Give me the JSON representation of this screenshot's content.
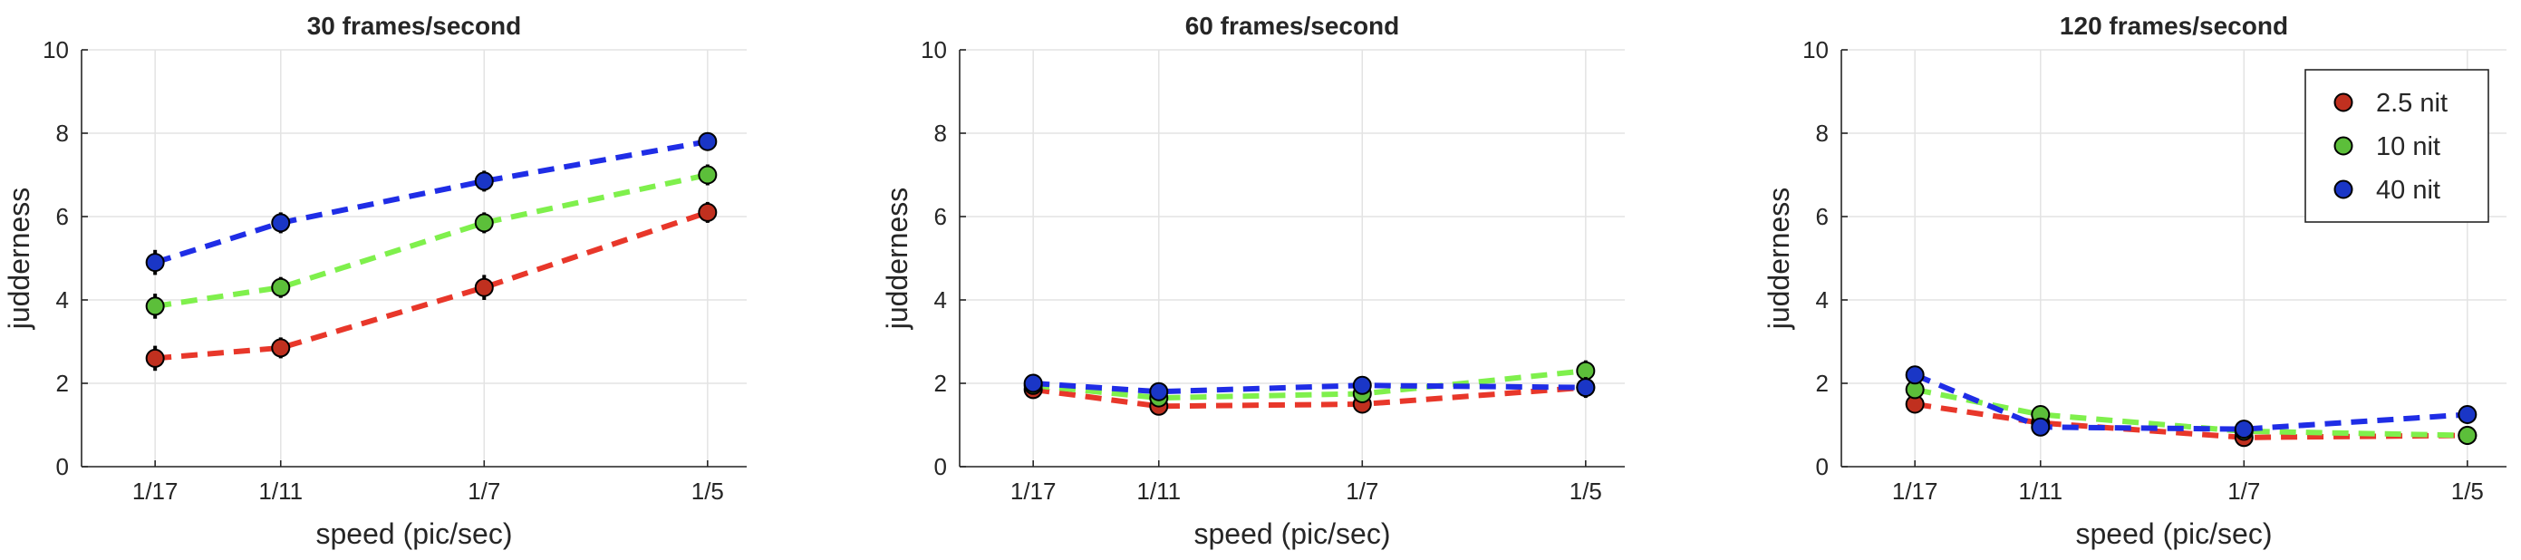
{
  "chart_data": [
    {
      "type": "line",
      "title": "30 frames/second",
      "xlabel": "speed (pic/sec)",
      "ylabel": "judderness",
      "categories": [
        "1/17",
        "1/11",
        "1/7",
        "1/5"
      ],
      "x": [
        0.0588,
        0.0909,
        0.1429,
        0.2
      ],
      "xlim": [
        0.04,
        0.21
      ],
      "ylim": [
        0,
        10
      ],
      "yticks": [
        0,
        2,
        4,
        6,
        8,
        10
      ],
      "grid": true,
      "series": [
        {
          "name": "2.5 nit",
          "color": "#e8372a",
          "marker_color": "#c0301f",
          "values": [
            2.6,
            2.85,
            4.3,
            6.1
          ],
          "err": [
            0.3,
            0.25,
            0.3,
            0.25
          ]
        },
        {
          "name": "10 nit",
          "color": "#7ff04c",
          "marker_color": "#5cbf3a",
          "values": [
            3.85,
            4.3,
            5.85,
            7.0
          ],
          "err": [
            0.3,
            0.25,
            0.25,
            0.25
          ]
        },
        {
          "name": "40 nit",
          "color": "#1f2de6",
          "marker_color": "#1a36c6",
          "values": [
            4.9,
            5.85,
            6.85,
            7.8
          ],
          "err": [
            0.3,
            0.25,
            0.25,
            0.15
          ]
        }
      ]
    },
    {
      "type": "line",
      "title": "60 frames/second",
      "xlabel": "speed (pic/sec)",
      "ylabel": "judderness",
      "categories": [
        "1/17",
        "1/11",
        "1/7",
        "1/5"
      ],
      "x": [
        0.0588,
        0.0909,
        0.1429,
        0.2
      ],
      "xlim": [
        0.04,
        0.21
      ],
      "ylim": [
        0,
        10
      ],
      "yticks": [
        0,
        2,
        4,
        6,
        8,
        10
      ],
      "grid": true,
      "series": [
        {
          "name": "2.5 nit",
          "color": "#e8372a",
          "marker_color": "#c0301f",
          "values": [
            1.85,
            1.45,
            1.5,
            1.9
          ],
          "err": [
            0.2,
            0.2,
            0.2,
            0.2
          ]
        },
        {
          "name": "10 nit",
          "color": "#7ff04c",
          "marker_color": "#5cbf3a",
          "values": [
            1.95,
            1.65,
            1.75,
            2.3
          ],
          "err": [
            0.2,
            0.2,
            0.2,
            0.25
          ]
        },
        {
          "name": "40 nit",
          "color": "#1f2de6",
          "marker_color": "#1a36c6",
          "values": [
            2.0,
            1.8,
            1.95,
            1.9
          ],
          "err": [
            0.2,
            0.2,
            0.2,
            0.25
          ]
        }
      ]
    },
    {
      "type": "line",
      "title": "120 frames/second",
      "xlabel": "speed (pic/sec)",
      "ylabel": "judderness",
      "categories": [
        "1/17",
        "1/11",
        "1/7",
        "1/5"
      ],
      "x": [
        0.0588,
        0.0909,
        0.1429,
        0.2
      ],
      "xlim": [
        0.04,
        0.21
      ],
      "ylim": [
        0,
        10
      ],
      "yticks": [
        0,
        2,
        4,
        6,
        8,
        10
      ],
      "grid": true,
      "legend": "top-right",
      "series": [
        {
          "name": "2.5 nit",
          "color": "#e8372a",
          "marker_color": "#c0301f",
          "values": [
            1.5,
            1.05,
            0.7,
            0.75
          ],
          "err": [
            0.2,
            0.15,
            0.1,
            0.1
          ]
        },
        {
          "name": "10 nit",
          "color": "#7ff04c",
          "marker_color": "#5cbf3a",
          "values": [
            1.85,
            1.25,
            0.85,
            0.75
          ],
          "err": [
            0.2,
            0.15,
            0.1,
            0.1
          ]
        },
        {
          "name": "40 nit",
          "color": "#1f2de6",
          "marker_color": "#1a36c6",
          "values": [
            2.2,
            0.95,
            0.9,
            1.25
          ],
          "err": [
            0.2,
            0.15,
            0.1,
            0.15
          ]
        }
      ]
    }
  ]
}
